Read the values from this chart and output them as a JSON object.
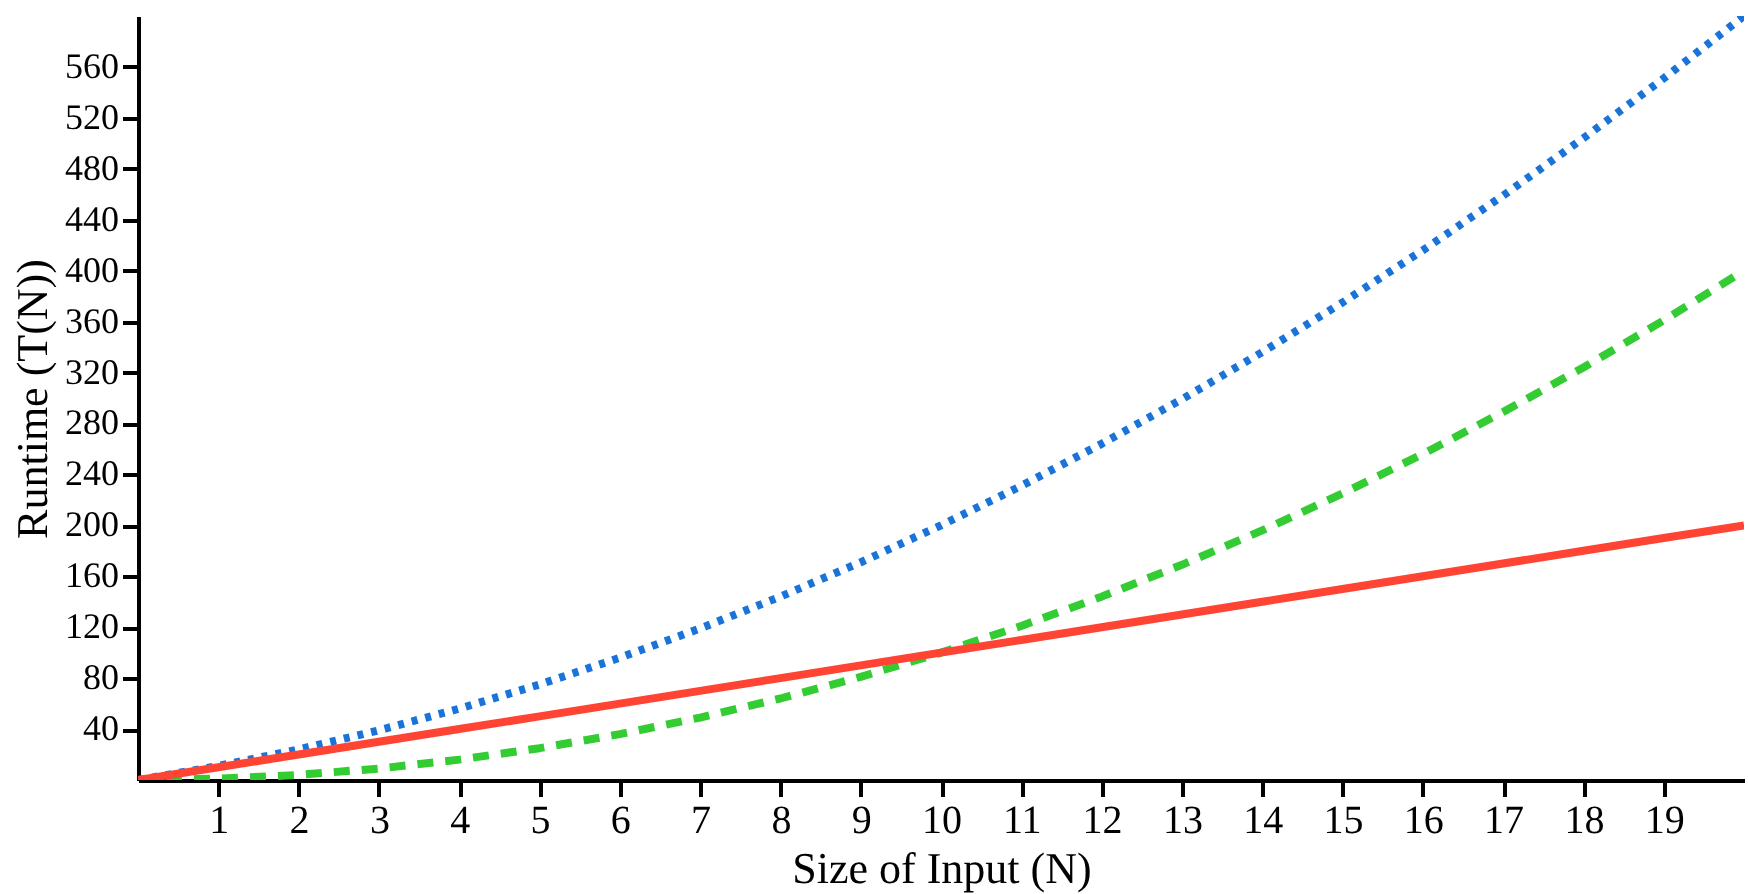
{
  "chart_data": {
    "type": "line",
    "xlabel": "Size of Input (N)",
    "ylabel": "Runtime (T(N))",
    "x": [
      0,
      1,
      2,
      3,
      4,
      5,
      6,
      7,
      8,
      9,
      10,
      11,
      12,
      13,
      14,
      15,
      16,
      17,
      18,
      19,
      20
    ],
    "series": [
      {
        "color": "#1a73d9",
        "line_style": "dotted",
        "values": [
          0,
          11,
          24,
          39,
          56,
          75,
          96,
          119,
          144,
          171,
          200,
          231,
          264,
          299,
          336,
          375,
          416,
          459,
          504,
          551,
          600
        ]
      },
      {
        "color": "#33cc33",
        "line_style": "dashed",
        "values": [
          0,
          1,
          4,
          9,
          16,
          25,
          36,
          49,
          64,
          81,
          100,
          121,
          144,
          169,
          196,
          225,
          256,
          289,
          324,
          361,
          400
        ]
      },
      {
        "color": "#ff4433",
        "line_style": "solid",
        "values": [
          0,
          10,
          20,
          30,
          40,
          50,
          60,
          70,
          80,
          90,
          100,
          110,
          120,
          130,
          140,
          150,
          160,
          170,
          180,
          190,
          200
        ]
      }
    ],
    "xlim": [
      0,
      20
    ],
    "ylim": [
      0,
      600
    ],
    "xticks": [
      1,
      2,
      3,
      4,
      5,
      6,
      7,
      8,
      9,
      10,
      11,
      12,
      13,
      14,
      15,
      16,
      17,
      18,
      19
    ],
    "yticks": [
      40,
      80,
      120,
      160,
      200,
      240,
      280,
      320,
      360,
      400,
      440,
      480,
      520,
      560
    ],
    "grid": false,
    "marker": "none"
  }
}
